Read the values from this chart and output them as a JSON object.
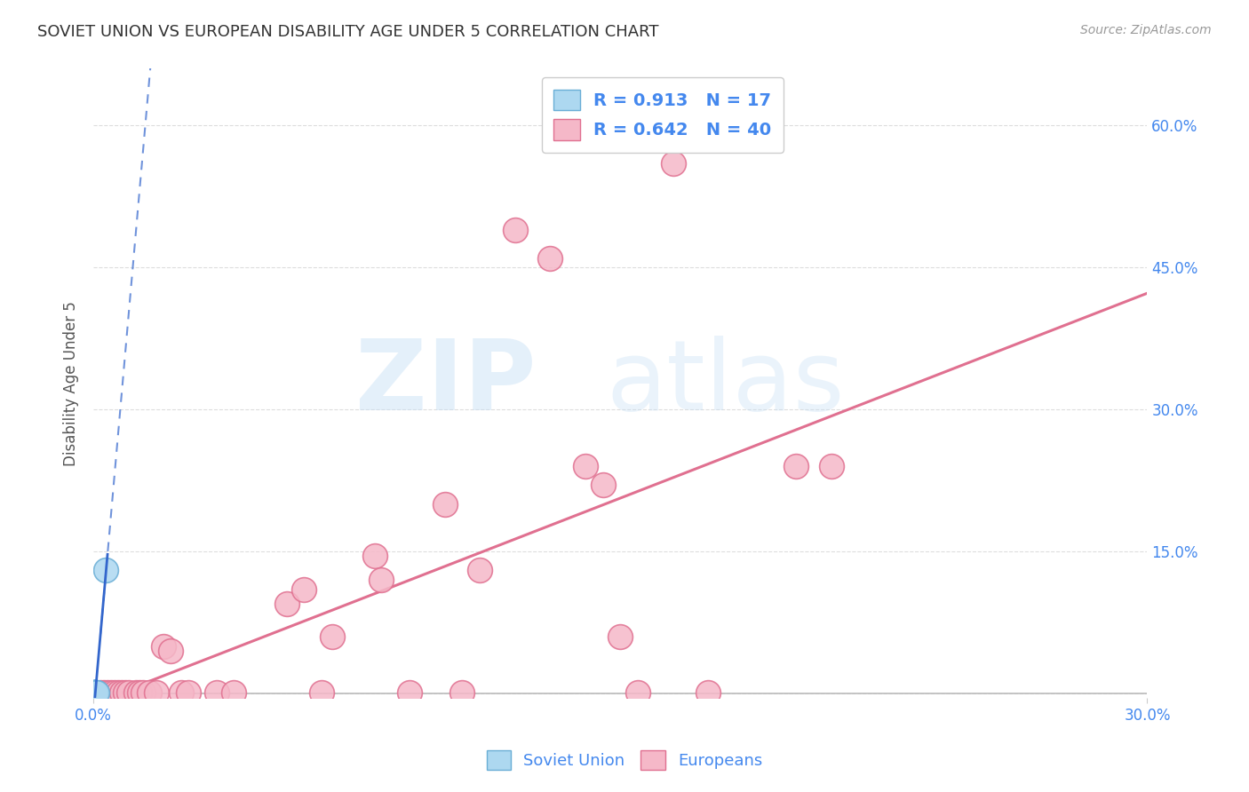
{
  "title": "SOVIET UNION VS EUROPEAN DISABILITY AGE UNDER 5 CORRELATION CHART",
  "source": "Source: ZipAtlas.com",
  "ylabel": "Disability Age Under 5",
  "xlim": [
    0.0,
    0.3
  ],
  "ylim": [
    -0.005,
    0.66
  ],
  "xticks": [
    0.0,
    0.3
  ],
  "yticks": [
    0.0,
    0.15,
    0.3,
    0.45,
    0.6
  ],
  "xtick_labels": [
    "0.0%",
    "30.0%"
  ],
  "ytick_labels_right": [
    "",
    "15.0%",
    "30.0%",
    "45.0%",
    "60.0%"
  ],
  "soviet_color": "#add8f0",
  "soviet_edge": "#6aaed6",
  "soviet_line_color": "#3366cc",
  "european_color": "#f5b8c8",
  "european_edge": "#e07090",
  "european_line_color": "#e07090",
  "soviet_R": 0.913,
  "soviet_N": 17,
  "european_R": 0.642,
  "european_N": 40,
  "soviet_points": [
    [
      0.0005,
      0.001
    ],
    [
      0.0005,
      0.001
    ],
    [
      0.0005,
      0.001
    ],
    [
      0.0005,
      0.001
    ],
    [
      0.0005,
      0.001
    ],
    [
      0.0005,
      0.001
    ],
    [
      0.0005,
      0.001
    ],
    [
      0.0005,
      0.001
    ],
    [
      0.0005,
      0.001
    ],
    [
      0.0005,
      0.001
    ],
    [
      0.0005,
      0.001
    ],
    [
      0.0005,
      0.001
    ],
    [
      0.0005,
      0.001
    ],
    [
      0.0005,
      0.001
    ],
    [
      0.0008,
      0.001
    ],
    [
      0.001,
      0.001
    ],
    [
      0.0035,
      0.13
    ]
  ],
  "european_points": [
    [
      0.002,
      0.001
    ],
    [
      0.003,
      0.001
    ],
    [
      0.004,
      0.001
    ],
    [
      0.005,
      0.001
    ],
    [
      0.006,
      0.001
    ],
    [
      0.007,
      0.001
    ],
    [
      0.008,
      0.001
    ],
    [
      0.009,
      0.001
    ],
    [
      0.01,
      0.001
    ],
    [
      0.012,
      0.001
    ],
    [
      0.013,
      0.001
    ],
    [
      0.014,
      0.001
    ],
    [
      0.016,
      0.001
    ],
    [
      0.018,
      0.001
    ],
    [
      0.02,
      0.05
    ],
    [
      0.022,
      0.045
    ],
    [
      0.025,
      0.001
    ],
    [
      0.027,
      0.001
    ],
    [
      0.035,
      0.001
    ],
    [
      0.04,
      0.001
    ],
    [
      0.055,
      0.095
    ],
    [
      0.06,
      0.11
    ],
    [
      0.065,
      0.001
    ],
    [
      0.068,
      0.06
    ],
    [
      0.08,
      0.145
    ],
    [
      0.082,
      0.12
    ],
    [
      0.09,
      0.001
    ],
    [
      0.1,
      0.2
    ],
    [
      0.105,
      0.001
    ],
    [
      0.11,
      0.13
    ],
    [
      0.12,
      0.49
    ],
    [
      0.13,
      0.46
    ],
    [
      0.14,
      0.24
    ],
    [
      0.145,
      0.22
    ],
    [
      0.15,
      0.06
    ],
    [
      0.155,
      0.001
    ],
    [
      0.165,
      0.56
    ],
    [
      0.175,
      0.001
    ],
    [
      0.2,
      0.24
    ],
    [
      0.21,
      0.24
    ]
  ],
  "bg_color": "#ffffff",
  "grid_color": "#dddddd",
  "title_color": "#333333",
  "axis_label_color": "#555555",
  "tick_color": "#4488ee",
  "source_color": "#999999"
}
